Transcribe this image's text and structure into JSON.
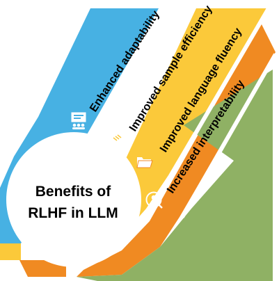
{
  "center": {
    "line1": "Benefits of",
    "line2": "RLHF in LLM"
  },
  "benefits": [
    {
      "label": "Enhanced adaptability",
      "icon": "meeting-icon",
      "color": "#47b1e3",
      "text_color": "#000000"
    },
    {
      "label": "Improved sample efficiency",
      "icon": "handshake-icon",
      "color": "#fbc93a",
      "text_color": "#000000"
    },
    {
      "label": "Improved language fluency",
      "icon": "folder-icon",
      "color": "#f08a22",
      "text_color": "#000000"
    },
    {
      "label": "Increased interpretability",
      "icon": "user-search-icon",
      "color": "#8fb164",
      "text_color": "#000000"
    }
  ],
  "colors": {
    "circle_fill": "#ffffff",
    "divider": "#ffffff"
  }
}
